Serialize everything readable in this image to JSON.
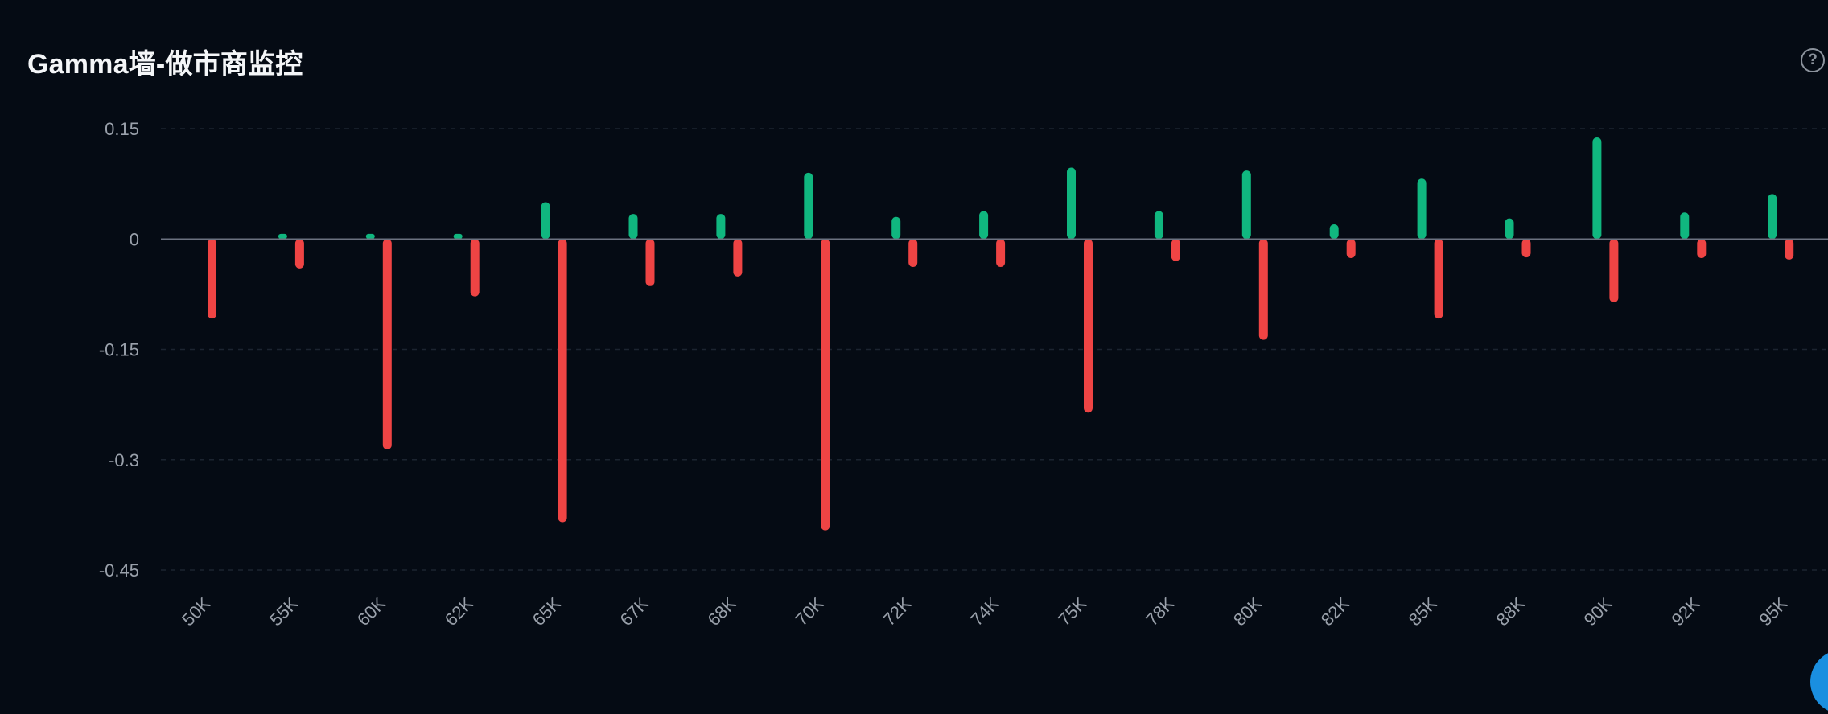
{
  "header": {
    "title": "Gamma墙-做市商监控",
    "help_icon": "question-circle-icon",
    "help_glyph": "?"
  },
  "colors": {
    "background": "#050b14",
    "positive": "#10b77f",
    "negative": "#ef4444",
    "axis": "#6b7280",
    "grid": "#1c2430",
    "tick_text": "#9aa1ab",
    "corner_widget": "#1a8fe0"
  },
  "chart_data": {
    "type": "bar",
    "title": "",
    "xlabel": "",
    "ylabel": "",
    "ylim": [
      -0.45,
      0.15
    ],
    "yticks": [
      0.15,
      0,
      -0.15,
      -0.3,
      -0.45
    ],
    "ytick_labels": [
      "0.15",
      "0",
      "-0.15",
      "-0.3",
      "-0.45"
    ],
    "grid": true,
    "legend": "none",
    "categories": [
      "50K",
      "55K",
      "60K",
      "62K",
      "65K",
      "67K",
      "68K",
      "70K",
      "72K",
      "74K",
      "75K",
      "78K",
      "80K",
      "82K",
      "85K",
      "88K",
      "90K",
      "92K",
      "95K"
    ],
    "series": [
      {
        "color": "#10b77f",
        "values": [
          0.0,
          0.007,
          0.007,
          0.007,
          0.05,
          0.034,
          0.034,
          0.09,
          0.03,
          0.038,
          0.097,
          0.038,
          0.093,
          0.02,
          0.082,
          0.028,
          0.138,
          0.036,
          0.061
        ]
      },
      {
        "color": "#ef4444",
        "values": [
          -0.108,
          -0.04,
          -0.286,
          -0.078,
          -0.385,
          -0.064,
          -0.051,
          -0.396,
          -0.038,
          -0.038,
          -0.236,
          -0.03,
          -0.137,
          -0.026,
          -0.108,
          -0.025,
          -0.086,
          -0.026,
          -0.028
        ]
      }
    ]
  }
}
